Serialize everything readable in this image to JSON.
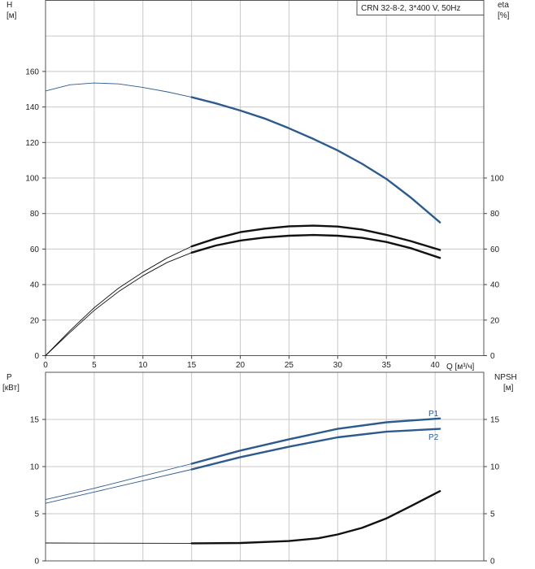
{
  "chart_data": [
    {
      "type": "line",
      "panel": "top",
      "legend_box": "CRN 32-8-2, 3*400 V, 50Hz",
      "left_axis_label": [
        "H",
        "[м]"
      ],
      "right_axis_label": [
        "eta",
        "[%]"
      ],
      "x_axis_label": "Q [м³/ч]",
      "xlim": [
        0,
        45
      ],
      "left_ylim": [
        0,
        200
      ],
      "right_ylim": [
        0,
        200
      ],
      "x_ticks": [
        0,
        5,
        10,
        15,
        20,
        25,
        30,
        35,
        40
      ],
      "left_ticks": [
        0,
        20,
        40,
        60,
        80,
        100,
        120,
        140,
        160
      ],
      "right_ticks": [
        0,
        20,
        40,
        60,
        80,
        100
      ],
      "grid": true,
      "series": [
        {
          "axis": "left",
          "color": "#2e5b8e",
          "thin_until": 15,
          "x": [
            0,
            2.5,
            5,
            7.5,
            10,
            12.5,
            15,
            17.5,
            20,
            22.5,
            25,
            27.5,
            30,
            32.5,
            35,
            37.5,
            40.5
          ],
          "values": [
            149,
            152.5,
            153.5,
            153,
            151,
            148.5,
            145.5,
            142,
            138,
            133.5,
            128,
            122,
            115.5,
            108,
            99.5,
            89,
            75
          ]
        },
        {
          "axis": "right",
          "color": "#111111",
          "thin_until": 15,
          "x": [
            0,
            2.5,
            5,
            7.5,
            10,
            12.5,
            15,
            17.5,
            20,
            22.5,
            25,
            27.5,
            30,
            32.5,
            35,
            37.5,
            40.5
          ],
          "values": [
            0,
            14,
            27,
            38,
            47,
            55,
            61.5,
            66,
            69.5,
            71.5,
            72.8,
            73.2,
            72.7,
            71,
            68,
            64.5,
            59.5
          ]
        },
        {
          "axis": "right",
          "color": "#111111",
          "thin_until": 15,
          "x": [
            0,
            2.5,
            5,
            7.5,
            10,
            12.5,
            15,
            17.5,
            20,
            22.5,
            25,
            27.5,
            30,
            32.5,
            35,
            37.5,
            40.5
          ],
          "values": [
            0,
            13,
            25.5,
            36,
            45,
            52.5,
            58,
            62,
            64.8,
            66.5,
            67.5,
            67.9,
            67.5,
            66.3,
            64,
            60.5,
            55
          ]
        }
      ]
    },
    {
      "type": "line",
      "panel": "bottom",
      "left_axis_label": [
        "P",
        "[кВт]"
      ],
      "right_axis_label": [
        "NPSH",
        "[м]"
      ],
      "xlim": [
        0,
        45
      ],
      "left_ylim": [
        0,
        20
      ],
      "right_ylim": [
        0,
        20
      ],
      "left_ticks": [
        0,
        5,
        10,
        15
      ],
      "right_ticks": [
        0,
        5,
        10,
        15
      ],
      "grid": true,
      "series": [
        {
          "name": "P1",
          "axis": "left",
          "color": "#2e5b8e",
          "thin_until": 15,
          "x": [
            0,
            5,
            10,
            15,
            20,
            25,
            30,
            35,
            40.5
          ],
          "values": [
            6.5,
            7.7,
            9.0,
            10.3,
            11.7,
            12.9,
            14.0,
            14.7,
            15.1
          ]
        },
        {
          "name": "P2",
          "axis": "left",
          "color": "#2e5b8e",
          "thin_until": 15,
          "x": [
            0,
            5,
            10,
            15,
            20,
            25,
            30,
            35,
            40.5
          ],
          "values": [
            6.1,
            7.3,
            8.5,
            9.7,
            11.0,
            12.1,
            13.1,
            13.7,
            14.0
          ]
        },
        {
          "axis": "right",
          "color": "#111111",
          "thin_until": 15,
          "x": [
            0,
            5,
            10,
            15,
            20,
            25,
            28,
            30,
            32.5,
            35,
            37.5,
            40.5
          ],
          "values": [
            1.9,
            1.88,
            1.87,
            1.86,
            1.9,
            2.1,
            2.4,
            2.8,
            3.5,
            4.5,
            5.8,
            7.4
          ]
        }
      ]
    }
  ]
}
